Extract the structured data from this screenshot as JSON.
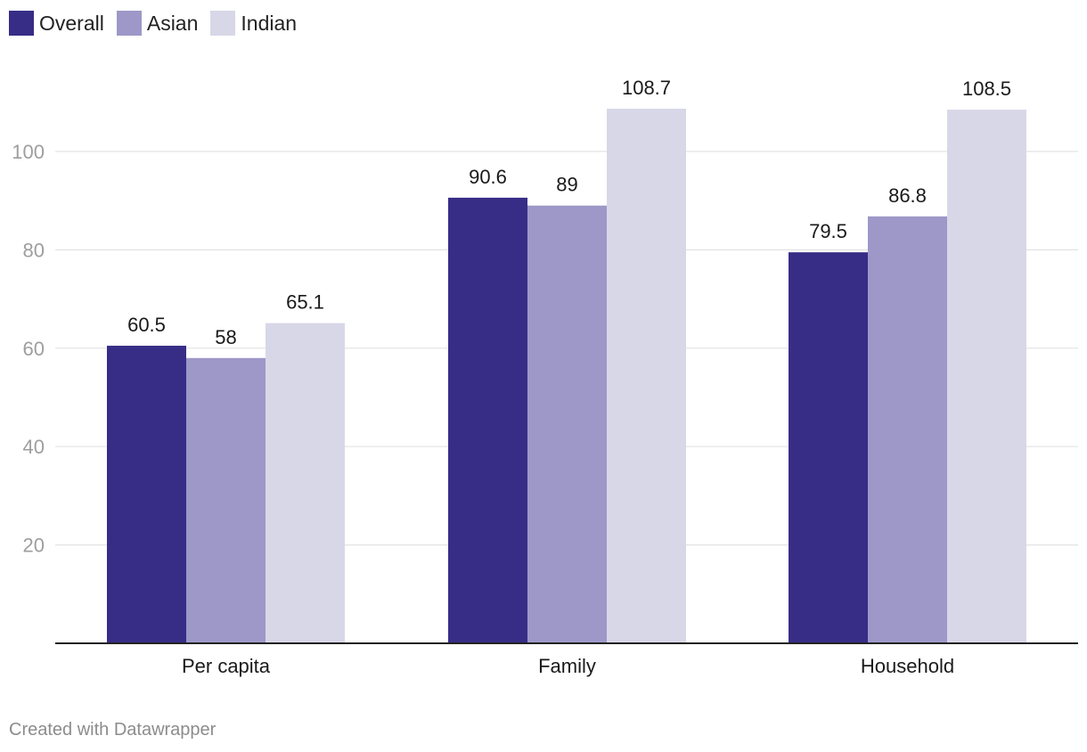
{
  "chart_data": {
    "type": "bar",
    "categories": [
      "Per capita",
      "Family",
      "Household"
    ],
    "series": [
      {
        "name": "Overall",
        "color": "#372d87",
        "values": [
          60.5,
          90.6,
          79.5
        ],
        "labels": [
          "60.5",
          "90.6",
          "79.5"
        ]
      },
      {
        "name": "Asian",
        "color": "#9d98c8",
        "values": [
          58,
          89,
          86.8
        ],
        "labels": [
          "58",
          "89",
          "86.8"
        ]
      },
      {
        "name": "Indian",
        "color": "#d8d7e8",
        "values": [
          65.1,
          108.7,
          108.5
        ],
        "labels": [
          "65.1",
          "108.7",
          "108.5"
        ]
      }
    ],
    "yticks": [
      20,
      40,
      60,
      80,
      100
    ],
    "ytick_labels": [
      "20",
      "40",
      "60",
      "80",
      "100"
    ],
    "ylim": [
      0,
      110
    ],
    "grid": true,
    "legend_position": "top-left",
    "title": "",
    "xlabel": "",
    "ylabel": ""
  },
  "footer": {
    "credit": "Created with Datawrapper"
  }
}
